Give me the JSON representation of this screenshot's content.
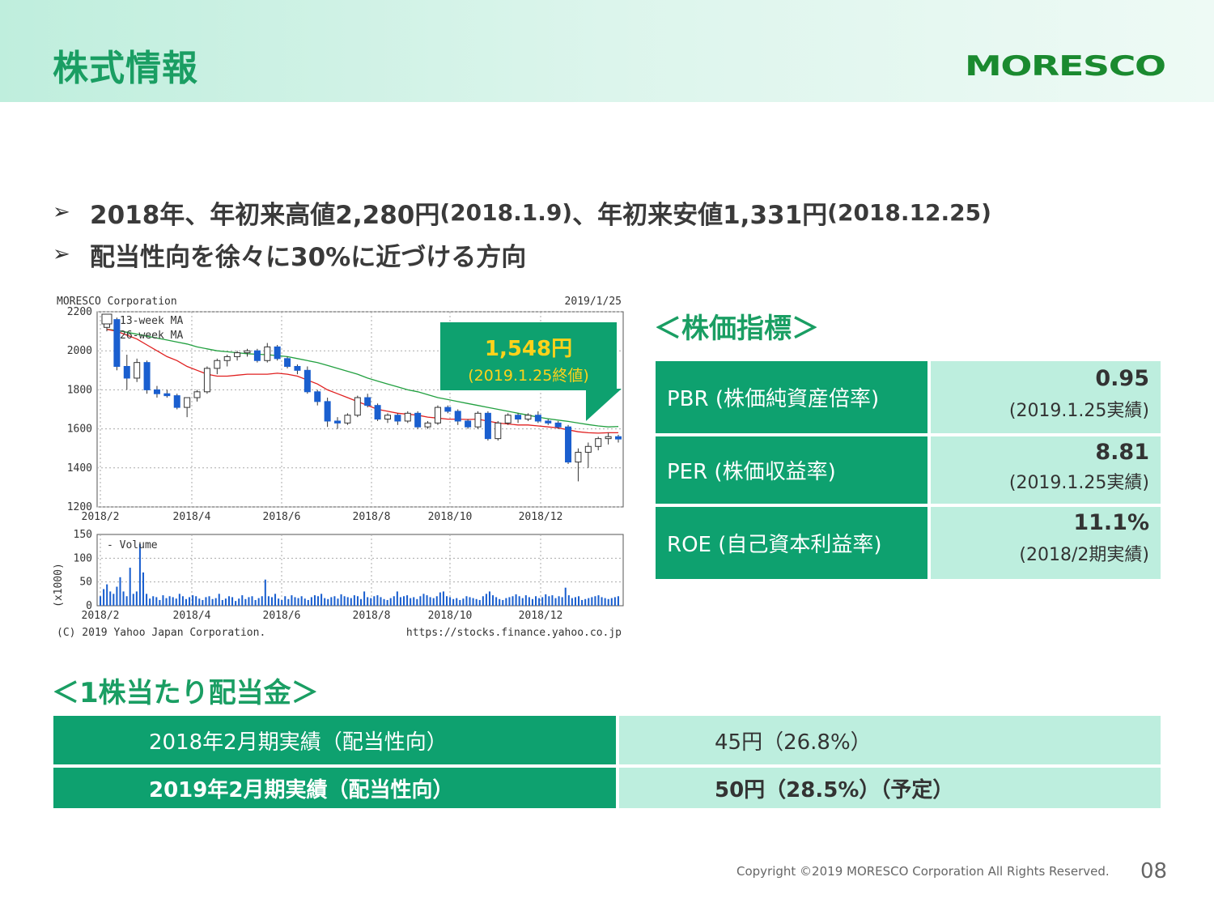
{
  "header": {
    "title": "株式情報",
    "logo_text": "MORESCO"
  },
  "bullets": [
    {
      "main": "2018年、年初来高値2,280円",
      "date1": "(2018.1.9)",
      "mid": "、年初来安値1,331円",
      "date2": " (2018.12.25)"
    },
    {
      "main": "配当性向を徐々に30%に近づける方向"
    }
  ],
  "stock_chart": {
    "header_left": "MORESCO Corporation",
    "header_right": "2019/1/25",
    "legend_ma13": "13-week MA",
    "legend_ma26": "26-week MA",
    "legend_volume": "Volume",
    "volume_unit": "(x1000)",
    "footer_left": "(C) 2019 Yahoo Japan Corporation.",
    "footer_right": "https://stocks.finance.yahoo.co.jp",
    "callout_price": "1,548円",
    "callout_date": "(2019.1.25終値)"
  },
  "chart_data": [
    {
      "type": "line",
      "title": "MORESCO Corporation",
      "x_ticks": [
        "2018/2",
        "2018/4",
        "2018/6",
        "2018/8",
        "2018/10",
        "2018/12"
      ],
      "ylim": [
        1200,
        2200
      ],
      "y_ticks": [
        1200,
        1400,
        1600,
        1800,
        2000,
        2200
      ],
      "grid": true,
      "candles": [
        [
          2120,
          2180,
          2100,
          2160
        ],
        [
          2160,
          2170,
          1900,
          1920
        ],
        [
          1920,
          1980,
          1800,
          1860
        ],
        [
          1860,
          1960,
          1840,
          1940
        ],
        [
          1940,
          1950,
          1780,
          1800
        ],
        [
          1800,
          1820,
          1760,
          1780
        ],
        [
          1780,
          1800,
          1760,
          1770
        ],
        [
          1770,
          1780,
          1700,
          1710
        ],
        [
          1710,
          1760,
          1660,
          1760
        ],
        [
          1760,
          1800,
          1740,
          1790
        ],
        [
          1790,
          1920,
          1780,
          1910
        ],
        [
          1910,
          1960,
          1880,
          1950
        ],
        [
          1950,
          1980,
          1920,
          1970
        ],
        [
          1970,
          2000,
          1950,
          1990
        ],
        [
          1990,
          2010,
          1970,
          2000
        ],
        [
          2000,
          2010,
          1940,
          1950
        ],
        [
          1950,
          2040,
          1940,
          2020
        ],
        [
          2020,
          2030,
          1950,
          1960
        ],
        [
          1960,
          1970,
          1910,
          1920
        ],
        [
          1920,
          1930,
          1880,
          1900
        ],
        [
          1900,
          1920,
          1780,
          1790
        ],
        [
          1790,
          1800,
          1720,
          1740
        ],
        [
          1740,
          1760,
          1610,
          1640
        ],
        [
          1640,
          1660,
          1600,
          1630
        ],
        [
          1630,
          1680,
          1620,
          1670
        ],
        [
          1670,
          1770,
          1660,
          1760
        ],
        [
          1760,
          1780,
          1710,
          1720
        ],
        [
          1720,
          1730,
          1640,
          1650
        ],
        [
          1650,
          1680,
          1630,
          1670
        ],
        [
          1670,
          1680,
          1620,
          1640
        ],
        [
          1640,
          1690,
          1630,
          1680
        ],
        [
          1680,
          1690,
          1600,
          1610
        ],
        [
          1610,
          1640,
          1600,
          1630
        ],
        [
          1630,
          1720,
          1620,
          1710
        ],
        [
          1710,
          1720,
          1680,
          1690
        ],
        [
          1690,
          1700,
          1620,
          1640
        ],
        [
          1640,
          1650,
          1600,
          1610
        ],
        [
          1610,
          1690,
          1600,
          1680
        ],
        [
          1680,
          1690,
          1540,
          1550
        ],
        [
          1550,
          1640,
          1540,
          1630
        ],
        [
          1630,
          1680,
          1620,
          1670
        ],
        [
          1670,
          1680,
          1630,
          1650
        ],
        [
          1650,
          1680,
          1640,
          1670
        ],
        [
          1670,
          1690,
          1630,
          1640
        ],
        [
          1640,
          1650,
          1620,
          1630
        ],
        [
          1630,
          1640,
          1600,
          1610
        ],
        [
          1610,
          1620,
          1420,
          1430
        ],
        [
          1430,
          1500,
          1331,
          1480
        ],
        [
          1480,
          1530,
          1400,
          1510
        ],
        [
          1510,
          1560,
          1490,
          1550
        ],
        [
          1550,
          1580,
          1520,
          1560
        ],
        [
          1560,
          1570,
          1530,
          1548
        ]
      ],
      "ma13": [
        2110,
        2100,
        2080,
        2060,
        2030,
        2000,
        1970,
        1950,
        1920,
        1900,
        1880,
        1870,
        1870,
        1875,
        1880,
        1880,
        1880,
        1885,
        1880,
        1870,
        1850,
        1830,
        1800,
        1780,
        1760,
        1740,
        1720,
        1700,
        1690,
        1680,
        1675,
        1670,
        1660,
        1655,
        1650,
        1650,
        1648,
        1650,
        1640,
        1630,
        1625,
        1620,
        1620,
        1615,
        1610,
        1605,
        1595,
        1585,
        1580,
        1578,
        1580,
        1580
      ],
      "ma26": [
        2110,
        2105,
        2095,
        2085,
        2075,
        2065,
        2055,
        2045,
        2035,
        2020,
        2010,
        2000,
        1995,
        1990,
        1985,
        1982,
        1980,
        1975,
        1970,
        1960,
        1950,
        1940,
        1925,
        1910,
        1895,
        1880,
        1860,
        1845,
        1830,
        1815,
        1800,
        1790,
        1775,
        1760,
        1750,
        1740,
        1730,
        1720,
        1710,
        1700,
        1690,
        1680,
        1670,
        1660,
        1652,
        1645,
        1638,
        1630,
        1622,
        1615,
        1610,
        1612
      ]
    },
    {
      "type": "bar",
      "title": "Volume",
      "ylabel": "(x1000)",
      "ylim": [
        0,
        150
      ],
      "y_ticks": [
        0,
        50,
        100,
        150
      ],
      "x_ticks": [
        "2018/2",
        "2018/4",
        "2018/6",
        "2018/8",
        "2018/10",
        "2018/12"
      ],
      "values": [
        20,
        35,
        45,
        30,
        25,
        40,
        60,
        30,
        20,
        80,
        25,
        30,
        130,
        70,
        25,
        15,
        20,
        18,
        12,
        22,
        16,
        20,
        18,
        15,
        25,
        20,
        14,
        18,
        22,
        20,
        15,
        12,
        18,
        20,
        14,
        16,
        25,
        12,
        15,
        20,
        18,
        10,
        15,
        22,
        14,
        18,
        20,
        12,
        16,
        20,
        55,
        20,
        18,
        25,
        15,
        12,
        20,
        14,
        22,
        18,
        16,
        20,
        15,
        12,
        18,
        22,
        20,
        25,
        16,
        14,
        18,
        20,
        15,
        24,
        20,
        18,
        16,
        22,
        20,
        14,
        30,
        18,
        16,
        20,
        22,
        18,
        14,
        12,
        16,
        20,
        30,
        18,
        20,
        22,
        16,
        18,
        14,
        20,
        25,
        22,
        18,
        16,
        20,
        28,
        30,
        20,
        18,
        14,
        16,
        12,
        15,
        20,
        18,
        16,
        14,
        12,
        20,
        25,
        30,
        22,
        18,
        14,
        12,
        16,
        18,
        20,
        24,
        20,
        16,
        22,
        18,
        14,
        20,
        16,
        18,
        24,
        20,
        22,
        16,
        20,
        18,
        38,
        22,
        16,
        18,
        20,
        12,
        14,
        16,
        18,
        20,
        22,
        18,
        16,
        14,
        16,
        18,
        20
      ]
    }
  ],
  "indicators": {
    "heading": "＜株価指標＞",
    "rows": [
      {
        "label": "PBR (株価純資産倍率)",
        "value": "0.95",
        "note": "(2019.1.25実績)"
      },
      {
        "label": "PER (株価収益率)",
        "value": "8.81",
        "note": "(2019.1.25実績)"
      },
      {
        "label": "ROE (自己資本利益率)",
        "value": "11.1%",
        "note": "(2018/2期実績)"
      }
    ]
  },
  "dividend": {
    "heading": "＜1株当たり配当金＞",
    "rows": [
      {
        "label": "2018年2月期実績（配当性向）",
        "value": "45円（26.8%）"
      },
      {
        "label": "2019年2月期実績（配当性向）",
        "value": "50円（28.5%）（予定）"
      }
    ]
  },
  "footer": {
    "copyright": "Copyright ©2019 MORESCO Corporation All Rights Reserved.",
    "page": "08"
  },
  "colors": {
    "green": "#0ea16f",
    "light_green": "#bdeede",
    "title_green": "#1a9e63",
    "callout_yellow": "#ffd21a",
    "candle_blue": "#1a5fcf",
    "ma13": "#e02020",
    "ma26": "#22a040"
  }
}
